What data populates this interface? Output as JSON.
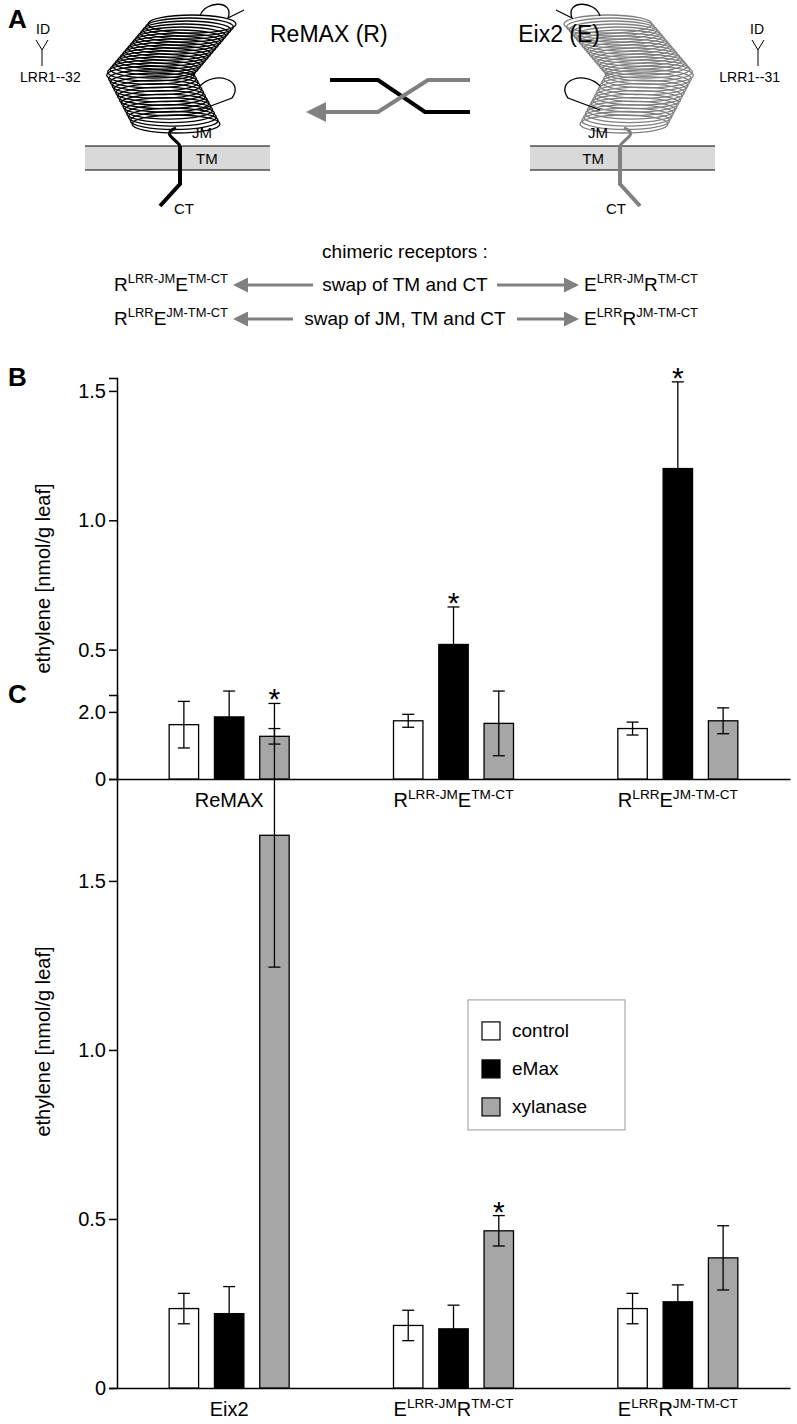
{
  "diagram": {
    "label": "A",
    "receptors": [
      {
        "name": "ReMAX (R)",
        "id": "ID",
        "lrr": "LRR1--32",
        "jm": "JM",
        "tm": "TM",
        "ct": "CT"
      },
      {
        "name": "Eix2 (E)",
        "id": "ID",
        "lrr": "LRR1--31",
        "jm": "JM",
        "tm": "TM",
        "ct": "CT"
      }
    ],
    "heading": "chimeric receptors :",
    "swaps": [
      {
        "left": [
          "R",
          "LRR-JM",
          "E",
          "TM-CT"
        ],
        "text": "swap of TM and CT",
        "right": [
          "E",
          "LRR-JM",
          "R",
          "TM-CT"
        ]
      },
      {
        "left": [
          "R",
          "LRR",
          "E",
          "JM-TM-CT"
        ],
        "text": "swap of JM, TM and CT",
        "right": [
          "E",
          "LRR",
          "R",
          "JM-TM-CT"
        ]
      }
    ]
  },
  "chart_data": [
    {
      "type": "bar",
      "title": "B",
      "y_label": "ethylene [nmol/g leaf]",
      "categories": [
        [
          "ReMAX"
        ],
        [
          "R",
          "LRR-JM",
          "E",
          "TM-CT"
        ],
        [
          "R",
          "LRR",
          "E",
          "JM-TM-CT"
        ]
      ],
      "series": [
        {
          "color": "#ffffff",
          "values": [
            0.21,
            0.225,
            0.195
          ],
          "errors": [
            0.09,
            0.025,
            0.025
          ]
        },
        {
          "color": "#000000",
          "values": [
            0.24,
            0.52,
            1.2
          ],
          "errors": [
            0.1,
            0.145,
            0.335
          ]
        },
        {
          "color": "#a6a6a6",
          "values": [
            0.165,
            0.215,
            0.225
          ],
          "errors": [
            0.03,
            0.125,
            0.05
          ]
        }
      ],
      "ylim": [
        0,
        1.55
      ],
      "yticks": [
        0,
        0.5,
        {
          "value": 1,
          "label": "1.0"
        },
        1.5
      ],
      "grid": false,
      "annotations": [
        {
          "text": "*",
          "series": 1,
          "category": 1
        },
        {
          "text": "*",
          "series": 1,
          "category": 2
        }
      ]
    },
    {
      "type": "bar",
      "title": "C",
      "y_label": "ethylene [nmol/g leaf]",
      "categories": [
        [
          "Eix2"
        ],
        [
          "E",
          "LRR-JM",
          "R",
          "TM-CT"
        ],
        [
          "E",
          "LRR",
          "R",
          "JM-TM-CT"
        ]
      ],
      "series": [
        {
          "name": "control",
          "color": "#ffffff",
          "values": [
            0.235,
            0.185,
            0.235
          ],
          "errors": [
            0.045,
            0.045,
            0.045
          ]
        },
        {
          "name": "eMax",
          "color": "#000000",
          "values": [
            0.22,
            0.175,
            0.255
          ],
          "errors": [
            0.08,
            0.07,
            0.05
          ]
        },
        {
          "name": "xylanase",
          "color": "#a6a6a6",
          "values": [
            1.635,
            0.465,
            0.385
          ],
          "errors": [
            0.39,
            0.045,
            0.095
          ]
        }
      ],
      "ylim": [
        0,
        2.05
      ],
      "yticks": [
        0,
        0.5,
        {
          "value": 1,
          "label": "1.0"
        },
        1.5,
        {
          "value": 2,
          "label": "2.0"
        }
      ],
      "grid": false,
      "legend": "right",
      "annotations": [
        {
          "text": "*",
          "series": 2,
          "category": 0
        },
        {
          "text": "*",
          "series": 2,
          "category": 1
        }
      ]
    }
  ]
}
